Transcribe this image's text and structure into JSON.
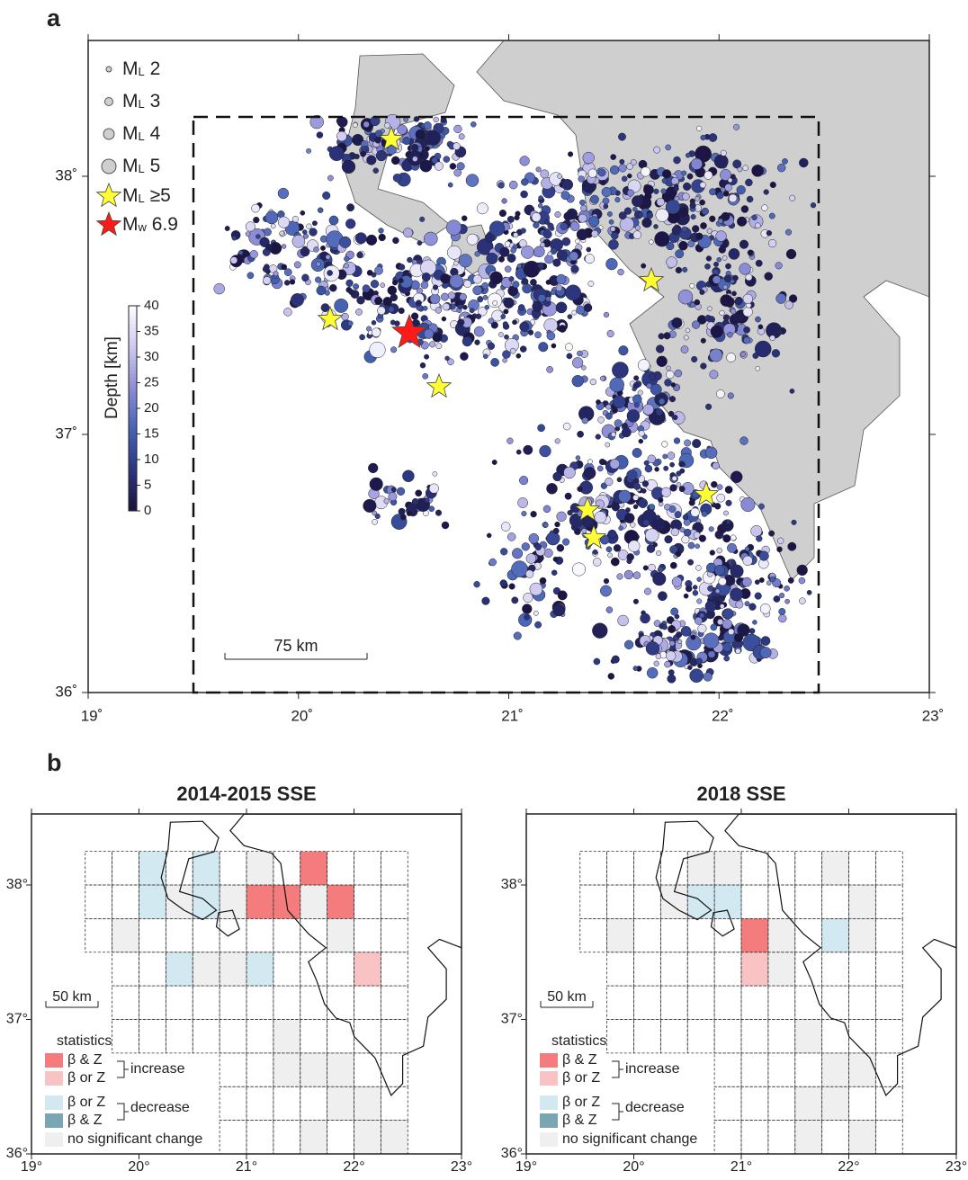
{
  "panel_a": {
    "label": "a",
    "legend": [
      {
        "main": "M",
        "sub": "L",
        "rest": " 2"
      },
      {
        "main": "M",
        "sub": "L",
        "rest": " 3"
      },
      {
        "main": "M",
        "sub": "L",
        "rest": " 4"
      },
      {
        "main": "M",
        "sub": "L",
        "rest": " 5"
      },
      {
        "main": "M",
        "sub": "L",
        "rest": " ≥5"
      },
      {
        "main": "M",
        "sub": "w",
        "rest": " 6.9"
      }
    ],
    "colorbar": {
      "title": "Depth [km]",
      "ticks": [
        0,
        5,
        10,
        15,
        20,
        25,
        30,
        35,
        40
      ]
    },
    "scale_bar": "75 km",
    "xticks": [
      {
        "value": 19,
        "label": "19˚"
      },
      {
        "value": 20,
        "label": "20˚"
      },
      {
        "value": 21,
        "label": "21˚"
      },
      {
        "value": 22,
        "label": "22˚"
      },
      {
        "value": 23,
        "label": "23˚"
      }
    ],
    "yticks": [
      {
        "value": 36,
        "label": "36˚"
      },
      {
        "value": 37,
        "label": "37˚"
      },
      {
        "value": 38,
        "label": "38˚"
      }
    ]
  },
  "panel_b": {
    "label": "b",
    "maps": [
      {
        "title": "2014-2015 SSE",
        "scale_bar": "50 km"
      },
      {
        "title": "2018 SSE",
        "scale_bar": "50 km"
      }
    ],
    "xticks": [
      {
        "value": 19,
        "label": "19°"
      },
      {
        "value": 20,
        "label": "20°"
      },
      {
        "value": 21,
        "label": "21°"
      },
      {
        "value": 22,
        "label": "22°"
      },
      {
        "value": 23,
        "label": "23°"
      }
    ],
    "yticks": [
      {
        "value": 36,
        "label": "36°"
      },
      {
        "value": 37,
        "label": "37°"
      },
      {
        "value": 38,
        "label": "38°"
      }
    ],
    "legend": {
      "title": "statistics",
      "increase": "increase",
      "decrease": "decrease",
      "items": [
        {
          "label": "β & Z",
          "color": "#f47c7c"
        },
        {
          "label": "β or Z",
          "color": "#f9c3c3"
        },
        {
          "label": "β or Z",
          "color": "#d3e9f1"
        },
        {
          "label": "β & Z",
          "color": "#7aa5b3"
        },
        {
          "label": "no significant change",
          "color": "#efefef"
        }
      ]
    }
  }
}
